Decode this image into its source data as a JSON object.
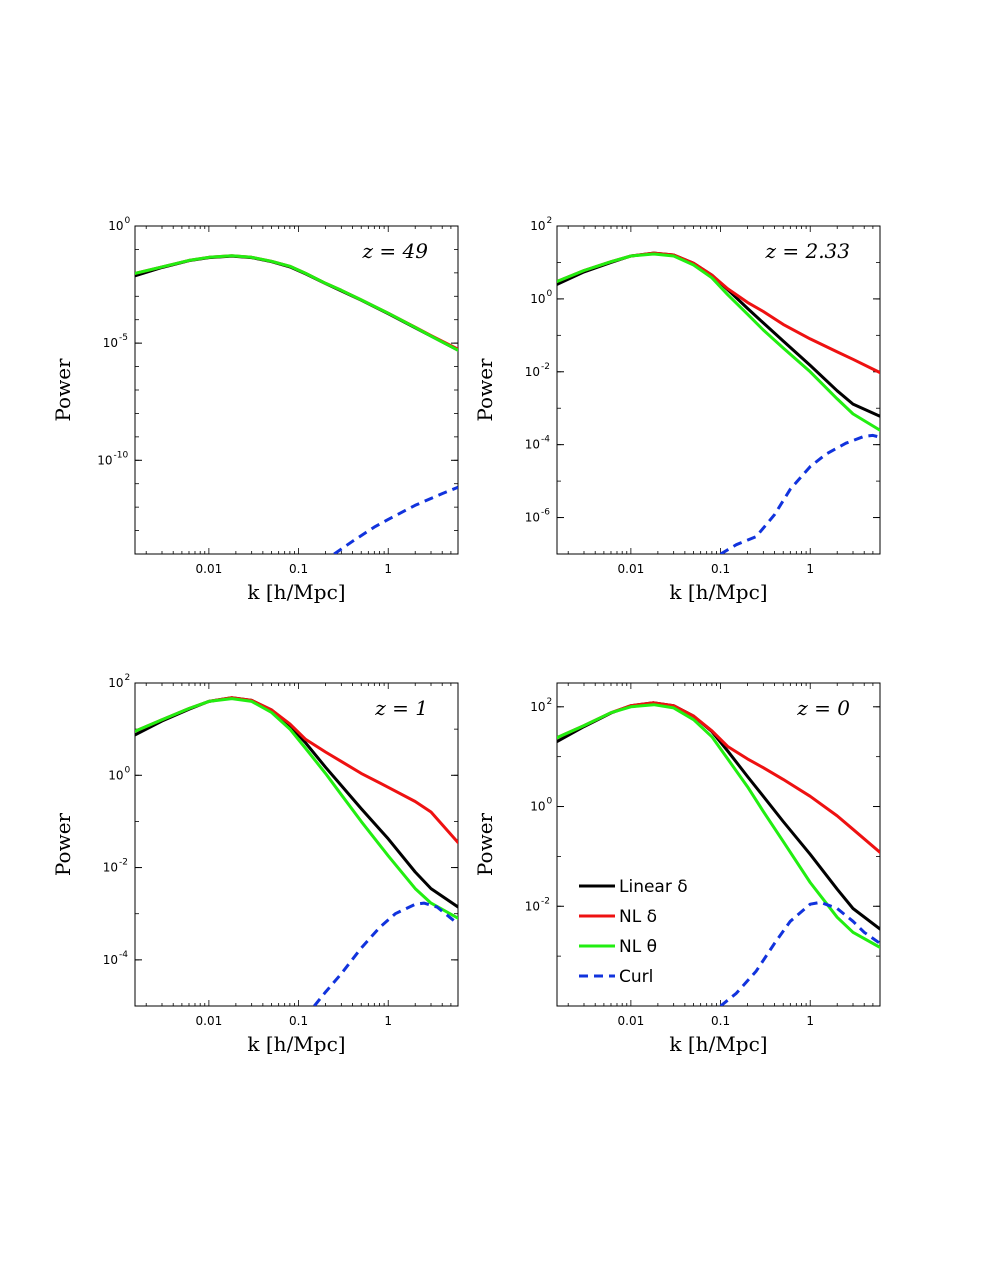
{
  "chart_data": [
    {
      "type": "line",
      "panel": "top-left",
      "title": "z = 49",
      "xlabel": "k   [h/Mpc]",
      "ylabel": "Power",
      "xscale": "log",
      "yscale": "log",
      "xlim": [
        0.0015,
        6
      ],
      "ylim": [
        1e-14,
        1
      ],
      "xticks": [
        0.01,
        0.1,
        1
      ],
      "xticklabels": [
        "0.01",
        "0.1",
        "1"
      ],
      "yticks": [
        {
          "base": "10",
          "exp": "0",
          "value": 1
        },
        {
          "base": "10",
          "exp": "-5",
          "value": 1e-05
        },
        {
          "base": "10",
          "exp": "-10",
          "value": 1e-10
        }
      ],
      "series": [
        {
          "name": "Linear δ",
          "color": "#000000",
          "dash": "solid",
          "x": [
            0.0015,
            0.003,
            0.006,
            0.01,
            0.018,
            0.03,
            0.05,
            0.08,
            0.12,
            0.2,
            0.3,
            0.5,
            1,
            2,
            3,
            6
          ],
          "y": [
            0.0075,
            0.017,
            0.033,
            0.045,
            0.052,
            0.045,
            0.03,
            0.018,
            0.009,
            0.0035,
            0.0017,
            0.00068,
            0.00018,
            4.5e-05,
            2e-05,
            5e-06
          ]
        },
        {
          "name": "NL δ",
          "color": "#ee1111",
          "dash": "solid",
          "x": [
            0.0015,
            0.003,
            0.006,
            0.01,
            0.018,
            0.03,
            0.05,
            0.08,
            0.12,
            0.2,
            0.3,
            0.5,
            1,
            2,
            3,
            6
          ],
          "y": [
            0.0095,
            0.018,
            0.034,
            0.046,
            0.054,
            0.046,
            0.031,
            0.019,
            0.0095,
            0.0036,
            0.0018,
            0.0007,
            0.00019,
            4.8e-05,
            2.1e-05,
            5.5e-06
          ]
        },
        {
          "name": "NL θ",
          "color": "#22ee11",
          "dash": "solid",
          "x": [
            0.0015,
            0.003,
            0.006,
            0.01,
            0.018,
            0.03,
            0.05,
            0.08,
            0.12,
            0.2,
            0.3,
            0.5,
            1,
            2,
            3,
            6
          ],
          "y": [
            0.0095,
            0.018,
            0.034,
            0.046,
            0.054,
            0.046,
            0.031,
            0.019,
            0.0095,
            0.0036,
            0.0018,
            0.0007,
            0.00019,
            4.7e-05,
            2e-05,
            5e-06
          ]
        },
        {
          "name": "Curl",
          "color": "#1133dd",
          "dash": "dashed",
          "x": [
            0.25,
            0.4,
            0.7,
            1,
            2,
            4,
            6
          ],
          "y": [
            1e-14,
            3.5e-14,
            1.4e-13,
            3e-13,
            1.2e-12,
            3.8e-12,
            7e-12
          ]
        }
      ]
    },
    {
      "type": "line",
      "panel": "top-right",
      "title": "z = 2.33",
      "xlabel": "k   [h/Mpc]",
      "ylabel": "Power",
      "xscale": "log",
      "yscale": "log",
      "xlim": [
        0.0015,
        6
      ],
      "ylim": [
        1e-07,
        100
      ],
      "xticks": [
        0.01,
        0.1,
        1
      ],
      "xticklabels": [
        "0.01",
        "0.1",
        "1"
      ],
      "yticks": [
        {
          "base": "10",
          "exp": "2",
          "value": 100
        },
        {
          "base": "10",
          "exp": "0",
          "value": 1
        },
        {
          "base": "10",
          "exp": "-2",
          "value": 0.01
        },
        {
          "base": "10",
          "exp": "-4",
          "value": 0.0001
        },
        {
          "base": "10",
          "exp": "-6",
          "value": 1e-06
        }
      ],
      "series": [
        {
          "name": "Linear δ",
          "color": "#000000",
          "dash": "solid",
          "x": [
            0.0015,
            0.003,
            0.006,
            0.01,
            0.018,
            0.03,
            0.05,
            0.08,
            0.12,
            0.2,
            0.3,
            0.5,
            1,
            2,
            3,
            6
          ],
          "y": [
            2.5,
            5.5,
            10,
            15,
            18,
            16,
            9.5,
            4.5,
            1.8,
            0.55,
            0.22,
            0.07,
            0.015,
            0.003,
            0.0013,
            0.0006
          ]
        },
        {
          "name": "NL δ",
          "color": "#ee1111",
          "dash": "solid",
          "x": [
            0.0015,
            0.003,
            0.006,
            0.01,
            0.018,
            0.03,
            0.05,
            0.08,
            0.12,
            0.2,
            0.3,
            0.5,
            1,
            2,
            3,
            6
          ],
          "y": [
            3,
            6,
            10.5,
            15,
            18,
            16,
            9.5,
            4.5,
            1.9,
            0.8,
            0.45,
            0.2,
            0.08,
            0.035,
            0.022,
            0.0095
          ]
        },
        {
          "name": "NL θ",
          "color": "#22ee11",
          "dash": "solid",
          "x": [
            0.0015,
            0.003,
            0.006,
            0.01,
            0.018,
            0.03,
            0.05,
            0.08,
            0.12,
            0.2,
            0.3,
            0.5,
            1,
            2,
            3,
            6
          ],
          "y": [
            3,
            6,
            10.5,
            15,
            17,
            15,
            8.5,
            3.8,
            1.3,
            0.38,
            0.14,
            0.045,
            0.01,
            0.0018,
            0.0007,
            0.00025
          ]
        },
        {
          "name": "Curl",
          "color": "#1133dd",
          "dash": "dashed",
          "x": [
            0.1,
            0.15,
            0.25,
            0.4,
            0.6,
            1,
            1.5,
            2.5,
            4,
            5,
            6
          ],
          "y": [
            1e-07,
            1.8e-07,
            3e-07,
            1.2e-06,
            6e-06,
            2.5e-05,
            5.5e-05,
            0.00011,
            0.00017,
            0.00018,
            0.00016
          ]
        }
      ]
    },
    {
      "type": "line",
      "panel": "bottom-left",
      "title": "z = 1",
      "xlabel": "k   [h/Mpc]",
      "ylabel": "Power",
      "xscale": "log",
      "yscale": "log",
      "xlim": [
        0.0015,
        6
      ],
      "ylim": [
        1e-05,
        100
      ],
      "xticks": [
        0.01,
        0.1,
        1
      ],
      "xticklabels": [
        "0.01",
        "0.1",
        "1"
      ],
      "yticks": [
        {
          "base": "10",
          "exp": "2",
          "value": 100
        },
        {
          "base": "10",
          "exp": "0",
          "value": 1
        },
        {
          "base": "10",
          "exp": "-2",
          "value": 0.01
        },
        {
          "base": "10",
          "exp": "-4",
          "value": 0.0001
        }
      ],
      "series": [
        {
          "name": "Linear δ",
          "color": "#000000",
          "dash": "solid",
          "x": [
            0.0015,
            0.003,
            0.006,
            0.01,
            0.018,
            0.03,
            0.05,
            0.08,
            0.12,
            0.2,
            0.3,
            0.5,
            1,
            2,
            3,
            6
          ],
          "y": [
            7.5,
            15,
            27,
            40,
            48,
            42,
            26,
            12,
            5,
            1.5,
            0.6,
            0.19,
            0.042,
            0.008,
            0.0035,
            0.0014
          ]
        },
        {
          "name": "NL δ",
          "color": "#ee1111",
          "dash": "solid",
          "x": [
            0.0015,
            0.003,
            0.006,
            0.01,
            0.018,
            0.03,
            0.05,
            0.08,
            0.12,
            0.2,
            0.3,
            0.5,
            1,
            2,
            3,
            6
          ],
          "y": [
            9,
            16,
            28,
            40,
            48,
            42,
            26,
            13,
            6,
            3.2,
            2,
            1.1,
            0.55,
            0.27,
            0.16,
            0.035
          ]
        },
        {
          "name": "NL θ",
          "color": "#22ee11",
          "dash": "solid",
          "x": [
            0.0015,
            0.003,
            0.006,
            0.01,
            0.018,
            0.03,
            0.05,
            0.08,
            0.12,
            0.2,
            0.3,
            0.5,
            1,
            2,
            3,
            6
          ],
          "y": [
            9,
            16,
            28,
            40,
            46,
            40,
            23,
            10,
            3.8,
            1.1,
            0.38,
            0.1,
            0.018,
            0.0035,
            0.0017,
            0.0008
          ]
        },
        {
          "name": "Curl",
          "color": "#1133dd",
          "dash": "dashed",
          "x": [
            0.15,
            0.2,
            0.3,
            0.5,
            0.8,
            1.2,
            2,
            2.5,
            3.5,
            5,
            6
          ],
          "y": [
            1e-05,
            2e-05,
            5e-05,
            0.00018,
            0.0005,
            0.001,
            0.0016,
            0.0017,
            0.0014,
            0.0008,
            0.0006
          ]
        }
      ]
    },
    {
      "type": "line",
      "panel": "bottom-right",
      "title": "z = 0",
      "xlabel": "k   [h/Mpc]",
      "ylabel": "Power",
      "xscale": "log",
      "yscale": "log",
      "xlim": [
        0.0015,
        6
      ],
      "ylim": [
        0.0001,
        300
      ],
      "xticks": [
        0.01,
        0.1,
        1
      ],
      "xticklabels": [
        "0.01",
        "0.1",
        "1"
      ],
      "yticks": [
        {
          "base": "10",
          "exp": "2",
          "value": 100
        },
        {
          "base": "10",
          "exp": "0",
          "value": 1
        },
        {
          "base": "10",
          "exp": "-2",
          "value": 0.01
        }
      ],
      "series": [
        {
          "name": "Linear δ",
          "color": "#000000",
          "dash": "solid",
          "x": [
            0.0015,
            0.003,
            0.006,
            0.01,
            0.018,
            0.03,
            0.05,
            0.08,
            0.12,
            0.2,
            0.3,
            0.5,
            1,
            2,
            3,
            6
          ],
          "y": [
            20,
            40,
            75,
            105,
            120,
            105,
            65,
            32,
            13,
            4,
            1.6,
            0.5,
            0.11,
            0.022,
            0.009,
            0.0035
          ]
        },
        {
          "name": "NL δ",
          "color": "#ee1111",
          "dash": "solid",
          "x": [
            0.0015,
            0.003,
            0.006,
            0.01,
            0.018,
            0.03,
            0.05,
            0.08,
            0.12,
            0.2,
            0.3,
            0.5,
            1,
            2,
            3,
            6
          ],
          "y": [
            24,
            42,
            76,
            105,
            120,
            105,
            65,
            33,
            16,
            9,
            6,
            3.5,
            1.6,
            0.65,
            0.35,
            0.12
          ]
        },
        {
          "name": "NL θ",
          "color": "#22ee11",
          "dash": "solid",
          "x": [
            0.0015,
            0.003,
            0.006,
            0.01,
            0.018,
            0.03,
            0.05,
            0.08,
            0.12,
            0.2,
            0.3,
            0.5,
            1,
            2,
            3,
            6
          ],
          "y": [
            24,
            42,
            76,
            100,
            110,
            95,
            55,
            25,
            9,
            2.5,
            0.8,
            0.2,
            0.03,
            0.006,
            0.003,
            0.0015
          ]
        },
        {
          "name": "Curl",
          "color": "#1133dd",
          "dash": "dashed",
          "x": [
            0.1,
            0.15,
            0.25,
            0.4,
            0.6,
            1,
            1.3,
            2,
            3,
            4,
            6
          ],
          "y": [
            0.0001,
            0.00018,
            0.0005,
            0.0018,
            0.005,
            0.011,
            0.012,
            0.009,
            0.005,
            0.003,
            0.0018
          ]
        }
      ]
    }
  ],
  "legend": {
    "panel": "bottom-right",
    "location": "lower-left",
    "entries": [
      "Linear  δ",
      "NL δ",
      "NL θ",
      "Curl"
    ]
  }
}
